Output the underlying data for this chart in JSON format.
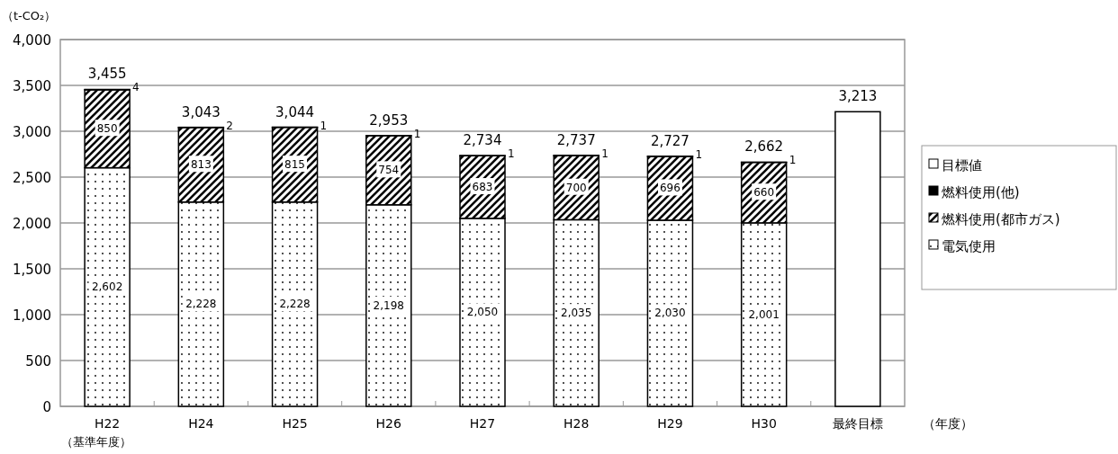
{
  "chart_data": {
    "type": "bar",
    "stacked": true,
    "ylabel": "（t-CO₂）",
    "xlabel": "（年度）",
    "categories": [
      "H22\n（基準年度）",
      "H24",
      "H25",
      "H26",
      "H27",
      "H28",
      "H29",
      "H30",
      "最終目標"
    ],
    "series": [
      {
        "name": "電気使用",
        "color": "#000000",
        "values": [
          2602,
          2228,
          2228,
          2198,
          2050,
          2035,
          2030,
          2001,
          null
        ],
        "value_labels": [
          "2,602",
          "2,228",
          "2,228",
          "2,198",
          "2,050",
          "2,035",
          "2,030",
          "2,001",
          null
        ]
      },
      {
        "name": "燃料使用(都市ガス)",
        "color": "#000000",
        "values": [
          850,
          813,
          815,
          754,
          683,
          700,
          696,
          660,
          null
        ],
        "value_labels": [
          "850",
          "813",
          "815",
          "754",
          "683",
          "700",
          "696",
          "660",
          null
        ]
      },
      {
        "name": "燃料使用(他)",
        "color": "#000000",
        "values": [
          4,
          2,
          1,
          1,
          1,
          1,
          1,
          1,
          null
        ],
        "value_labels": [
          "4",
          "2",
          "1",
          "1",
          "1",
          "1",
          "1",
          "1",
          null
        ]
      },
      {
        "name": "目標値",
        "color": "#ffffff",
        "values": [
          null,
          null,
          null,
          null,
          null,
          null,
          null,
          null,
          3213
        ]
      }
    ],
    "totals": [
      "3,455",
      "3,043",
      "3,044",
      "2,953",
      "2,734",
      "2,737",
      "2,727",
      "2,662",
      "3,213"
    ],
    "ylim": [
      0,
      4000
    ],
    "yticks": [
      0,
      500,
      {
        "value": 1000,
        "label": "1,000"
      },
      {
        "value": 1500,
        "label": "1,500"
      },
      {
        "value": 2000,
        "label": "2,000"
      },
      {
        "value": 2500,
        "label": "2,500"
      },
      {
        "value": 3000,
        "label": "3,000"
      },
      {
        "value": 3500,
        "label": "3,500"
      },
      {
        "value": 4000,
        "label": "4,000"
      }
    ],
    "grid": "y",
    "legend": "right"
  }
}
